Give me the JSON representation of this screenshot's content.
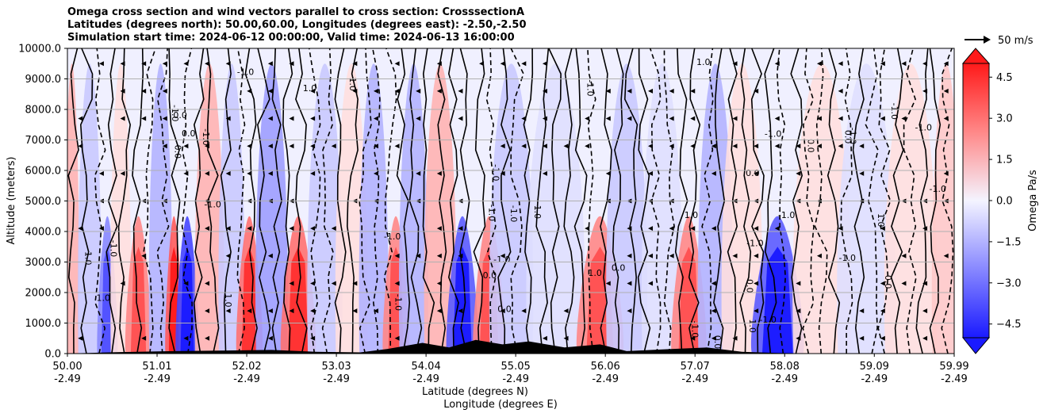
{
  "chart_data": {
    "type": "heatmap",
    "title_lines": [
      "Omega cross section and wind vectors parallel to cross section: CrosssectionA",
      "Latitudes (degrees north): 50.00,60.00, Longitudes (degrees east): -2.50,-2.50",
      "Simulation start time: 2024-06-12 00:00:00, Valid time: 2024-06-13 16:00:00"
    ],
    "xlabel_lines": [
      "Latitude (degrees N)",
      "Longitude (degrees E)"
    ],
    "ylabel": "Altitude (meters)",
    "x_ticks": [
      {
        "lat": "50.00",
        "lon": "-2.49"
      },
      {
        "lat": "51.01",
        "lon": "-2.49"
      },
      {
        "lat": "52.02",
        "lon": "-2.49"
      },
      {
        "lat": "53.03",
        "lon": "-2.49"
      },
      {
        "lat": "54.04",
        "lon": "-2.49"
      },
      {
        "lat": "55.05",
        "lon": "-2.49"
      },
      {
        "lat": "56.06",
        "lon": "-2.49"
      },
      {
        "lat": "57.07",
        "lon": "-2.49"
      },
      {
        "lat": "58.08",
        "lon": "-2.49"
      },
      {
        "lat": "59.09",
        "lon": "-2.49"
      },
      {
        "lat": "59.99",
        "lon": "-2.49"
      }
    ],
    "xlim": [
      50.0,
      59.99
    ],
    "y_ticks": [
      "0.0",
      "1000.0",
      "2000.0",
      "3000.0",
      "4000.0",
      "5000.0",
      "6000.0",
      "7000.0",
      "8000.0",
      "9000.0",
      "10000.0"
    ],
    "ylim": [
      0,
      10000
    ],
    "grid": "horizontal",
    "colorbar": {
      "label": "Omega Pa/s",
      "ticks": [
        "4.5",
        "3.0",
        "1.5",
        "0.0",
        "−1.5",
        "−3.0",
        "−4.5"
      ],
      "range": [
        -5.0,
        5.0
      ],
      "negative_color": "#0000ff",
      "positive_color": "#ff0000"
    },
    "vector_key": {
      "label": "50 m/s"
    },
    "contour_labels": [
      "-1.0",
      "0.0",
      "1.0"
    ],
    "omega_columns": [
      {
        "lat": 50.05,
        "omega": 1.5
      },
      {
        "lat": 50.25,
        "omega": -1.0
      },
      {
        "lat": 50.45,
        "omega": -2.5
      },
      {
        "lat": 50.6,
        "omega": 0.5
      },
      {
        "lat": 50.8,
        "omega": 2.5
      },
      {
        "lat": 51.05,
        "omega": -1.5
      },
      {
        "lat": 51.2,
        "omega": 3.5
      },
      {
        "lat": 51.35,
        "omega": -4.0
      },
      {
        "lat": 51.6,
        "omega": 1.5
      },
      {
        "lat": 51.85,
        "omega": -1.0
      },
      {
        "lat": 52.05,
        "omega": 3.0
      },
      {
        "lat": 52.3,
        "omega": -2.0
      },
      {
        "lat": 52.6,
        "omega": 3.0
      },
      {
        "lat": 52.9,
        "omega": -1.0
      },
      {
        "lat": 53.2,
        "omega": 0.5
      },
      {
        "lat": 53.45,
        "omega": -1.5
      },
      {
        "lat": 53.7,
        "omega": 2.5
      },
      {
        "lat": 53.9,
        "omega": -1.5
      },
      {
        "lat": 54.2,
        "omega": 1.5
      },
      {
        "lat": 54.45,
        "omega": -3.5
      },
      {
        "lat": 54.75,
        "omega": 2.5
      },
      {
        "lat": 55.0,
        "omega": -1.0
      },
      {
        "lat": 55.5,
        "omega": -0.5
      },
      {
        "lat": 56.0,
        "omega": 2.5
      },
      {
        "lat": 56.3,
        "omega": -1.0
      },
      {
        "lat": 56.7,
        "omega": -0.5
      },
      {
        "lat": 57.0,
        "omega": 2.5
      },
      {
        "lat": 57.3,
        "omega": -1.5
      },
      {
        "lat": 57.6,
        "omega": 0.5
      },
      {
        "lat": 58.0,
        "omega": -3.5
      },
      {
        "lat": 58.5,
        "omega": 0.5
      },
      {
        "lat": 59.0,
        "omega": -0.5
      },
      {
        "lat": 59.5,
        "omega": 0.5
      },
      {
        "lat": 59.9,
        "omega": 1.0
      }
    ],
    "terrain": [
      {
        "lat": 50.0,
        "alt": 0
      },
      {
        "lat": 50.6,
        "alt": 50
      },
      {
        "lat": 51.2,
        "alt": 80
      },
      {
        "lat": 51.8,
        "alt": 100
      },
      {
        "lat": 52.3,
        "alt": 120
      },
      {
        "lat": 52.8,
        "alt": 60
      },
      {
        "lat": 53.3,
        "alt": 40
      },
      {
        "lat": 53.6,
        "alt": 150
      },
      {
        "lat": 54.0,
        "alt": 350
      },
      {
        "lat": 54.3,
        "alt": 200
      },
      {
        "lat": 54.6,
        "alt": 450
      },
      {
        "lat": 54.9,
        "alt": 300
      },
      {
        "lat": 55.2,
        "alt": 400
      },
      {
        "lat": 55.6,
        "alt": 200
      },
      {
        "lat": 56.0,
        "alt": 300
      },
      {
        "lat": 56.3,
        "alt": 80
      },
      {
        "lat": 56.8,
        "alt": 150
      },
      {
        "lat": 57.2,
        "alt": 200
      },
      {
        "lat": 57.6,
        "alt": 60
      },
      {
        "lat": 58.0,
        "alt": 20
      },
      {
        "lat": 58.5,
        "alt": 0
      },
      {
        "lat": 59.99,
        "alt": 0
      }
    ]
  }
}
